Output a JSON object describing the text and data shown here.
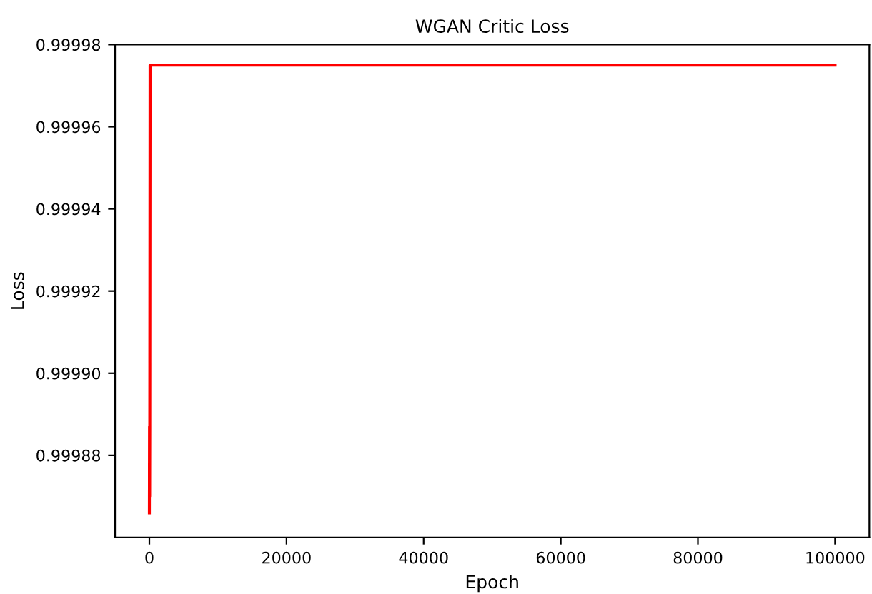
{
  "chart_data": {
    "type": "line",
    "title": "WGAN Critic Loss",
    "xlabel": "Epoch",
    "ylabel": "Loss",
    "x": [
      0,
      20,
      40,
      60,
      100,
      100000
    ],
    "series": [
      {
        "color": "#ff0000",
        "values": [
          0.999866,
          0.999887,
          0.99987,
          0.999887,
          0.999975,
          0.999975
        ]
      }
    ],
    "xlim": [
      -5000,
      105000
    ],
    "xticks": [
      0,
      20000,
      40000,
      60000,
      80000,
      100000
    ],
    "ylim": [
      0.99986,
      0.99998
    ],
    "yticks": [
      {
        "value": 0.99988,
        "label": "0.99988"
      },
      {
        "value": 0.9999,
        "label": "0.99990"
      },
      {
        "value": 0.99992,
        "label": "0.99992"
      },
      {
        "value": 0.99994,
        "label": "0.99994"
      },
      {
        "value": 0.99996,
        "label": "0.99996"
      },
      {
        "value": 0.99998,
        "label": "0.99998"
      }
    ],
    "grid": false,
    "legend": false
  }
}
